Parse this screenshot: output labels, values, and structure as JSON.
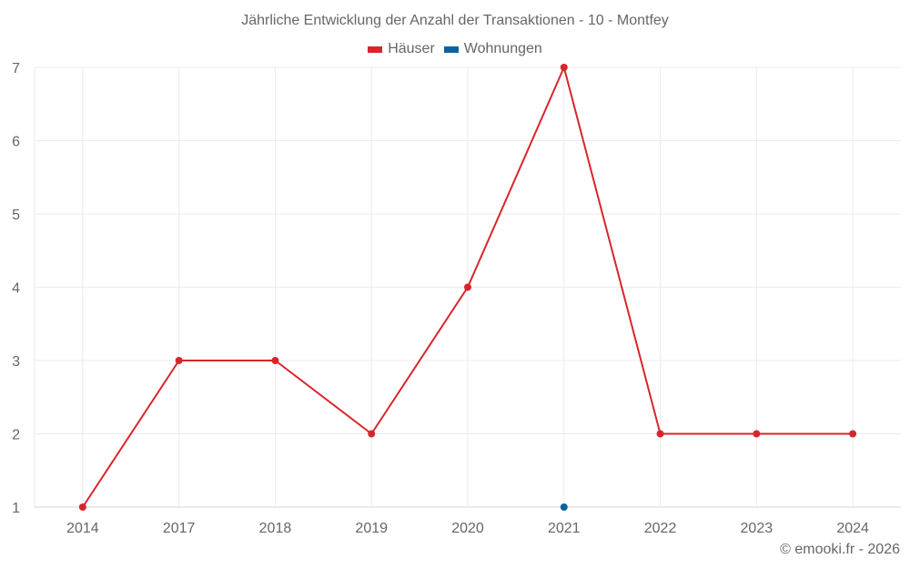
{
  "chart_data": {
    "type": "line",
    "title": "Jährliche Entwicklung der Anzahl der Transaktionen - 10 - Montfey",
    "categories": [
      "2014",
      "2017",
      "2018",
      "2019",
      "2020",
      "2021",
      "2022",
      "2023",
      "2024"
    ],
    "series": [
      {
        "name": "Häuser",
        "color": "#d7262b",
        "values": [
          1,
          3,
          3,
          2,
          4,
          7,
          2,
          2,
          2
        ]
      },
      {
        "name": "Wohnungen",
        "color": "#06639e",
        "values": [
          null,
          null,
          null,
          null,
          null,
          1,
          null,
          null,
          null
        ]
      }
    ],
    "xlabel": "",
    "ylabel": "",
    "yticks": [
      1,
      2,
      3,
      4,
      5,
      6,
      7
    ],
    "ylim": [
      1,
      7
    ],
    "grid": true,
    "legend_position": "top-center"
  },
  "credit": "© emooki.fr - 2026"
}
